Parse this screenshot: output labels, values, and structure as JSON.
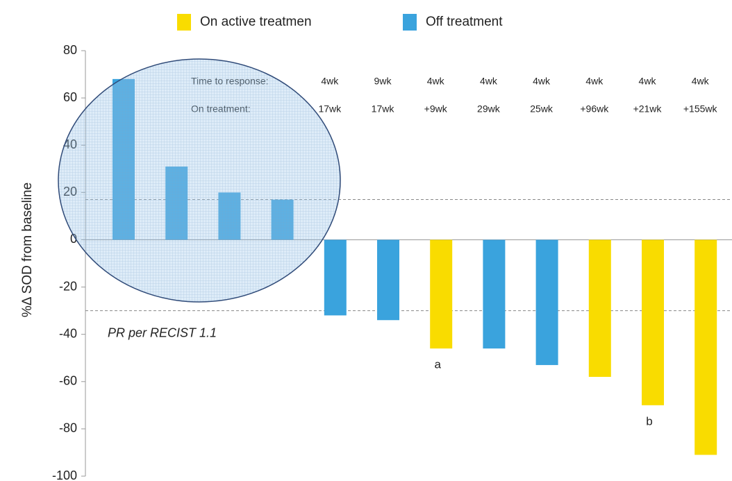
{
  "chart_data": {
    "type": "bar",
    "ylabel": "%Δ SOD from baseline",
    "series": [
      {
        "name": "On active treatmen",
        "color": "#f9dc00",
        "values": [
          null,
          null,
          null,
          null,
          null,
          null,
          -46,
          null,
          null,
          -58,
          -70,
          -91
        ]
      },
      {
        "name": "Off treatment",
        "color": "#3aa3dd",
        "values": [
          68,
          31,
          20,
          17,
          -32,
          -34,
          null,
          -46,
          -53,
          null,
          null,
          null
        ]
      }
    ],
    "ylim": [
      -100,
      80
    ],
    "yticks": [
      -100,
      -80,
      -60,
      -40,
      -20,
      0,
      20,
      40,
      60,
      80
    ],
    "reference_lines": [
      {
        "value": 17
      },
      {
        "value": -30,
        "label": "PR per RECIST 1.1"
      }
    ],
    "time_to_response": {
      "label": "Time to response:",
      "values": [
        "4wk",
        "9wk",
        "4wk",
        "4wk",
        "4wk",
        "4wk",
        "4wk",
        "4wk"
      ]
    },
    "on_treatment": {
      "label": "On treatment:",
      "values": [
        "17wk",
        "17wk",
        "+9wk",
        "29wk",
        "25wk",
        "+96wk",
        "+21wk",
        "+155wk"
      ]
    },
    "notes": [
      {
        "bar": 6,
        "text": "a"
      },
      {
        "bar": 10,
        "text": "b"
      }
    ]
  }
}
